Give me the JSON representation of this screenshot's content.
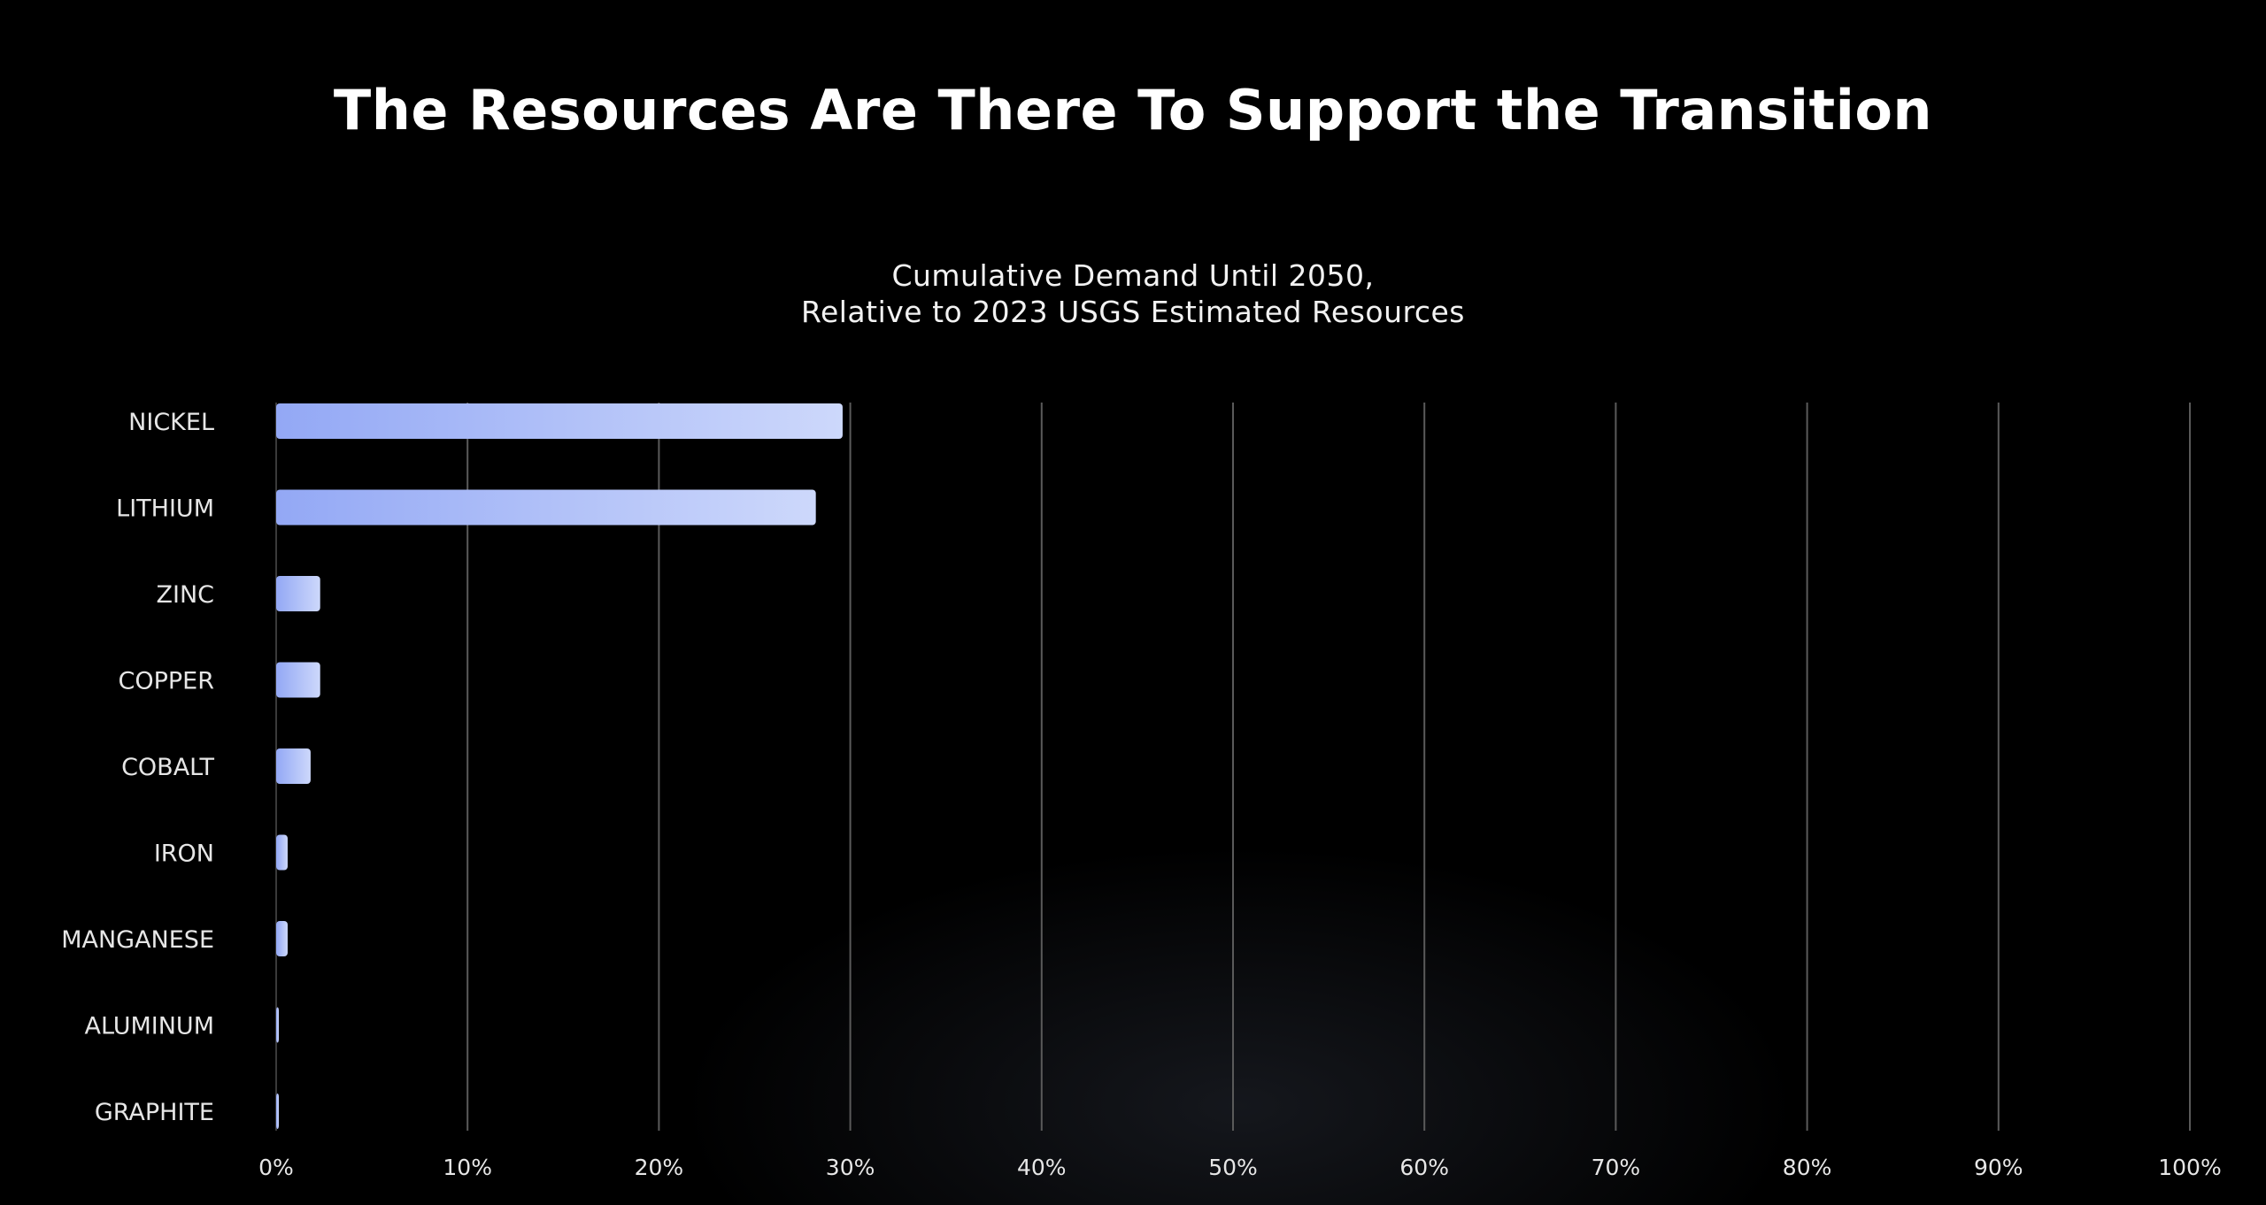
{
  "slide": {
    "title": "The Resources Are There To Support the Transition"
  },
  "chart_data": {
    "type": "bar",
    "orientation": "horizontal",
    "title": "Cumulative Demand Until 2050,",
    "subtitle": "Relative to 2023 USGS Estimated Resources",
    "categories": [
      "NICKEL",
      "LITHIUM",
      "ZINC",
      "COPPER",
      "COBALT",
      "IRON",
      "MANGANESE",
      "ALUMINUM",
      "GRAPHITE"
    ],
    "values": [
      29.6,
      28.2,
      2.3,
      2.3,
      1.8,
      0.6,
      0.6,
      0.1,
      0.1
    ],
    "xlim": [
      0,
      100
    ],
    "x_ticks": [
      0,
      10,
      20,
      30,
      40,
      50,
      60,
      70,
      80,
      90,
      100
    ],
    "x_tick_labels": [
      "0%",
      "10%",
      "20%",
      "30%",
      "40%",
      "50%",
      "60%",
      "70%",
      "80%",
      "90%",
      "100%"
    ],
    "grid": "vertical",
    "legend": "none",
    "colors": {
      "bar_start": "#93a8f5",
      "bar_end": "#cdd8fb",
      "gridline": "#5a5a5a",
      "label": "#e6e6e6"
    }
  }
}
